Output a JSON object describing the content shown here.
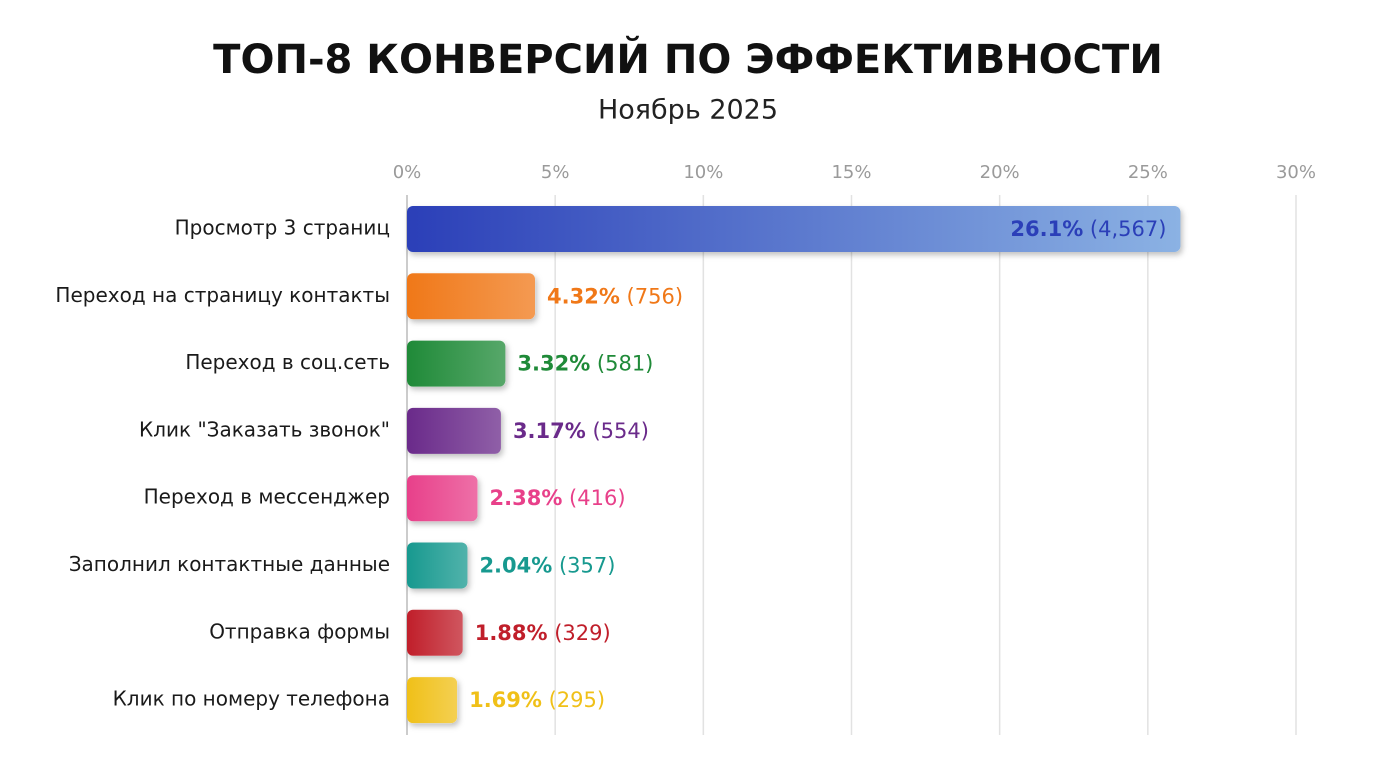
{
  "chart_data": {
    "type": "hbar",
    "title": "ТОП-8 КОНВЕРСИЙ ПО ЭФФЕКТИВНОСТИ",
    "subtitle": "Ноябрь 2025",
    "categories": [
      "Просмотр 3 страниц",
      "Переход на страницу контакты",
      "Переход в соц.сеть",
      "Клик \"Заказать звонок\"",
      "Переход в мессенджер",
      "Заполнил контактные данные",
      "Отправка формы",
      "Клик по номеру телефона"
    ],
    "values": [
      26.1,
      4.32,
      3.32,
      3.17,
      2.38,
      2.04,
      1.88,
      1.69
    ],
    "value_labels": [
      "26.1% (4,567)",
      "4.32% (756)",
      "3.32% (581)",
      "3.17% (554)",
      "2.38% (416)",
      "2.04% (357)",
      "1.88% (329)",
      "1.69% (295)"
    ],
    "colors": [
      "#2b3fb8",
      "#f07818",
      "#1f8a38",
      "#6a2a8a",
      "#e8408a",
      "#17998f",
      "#c01e2a",
      "#f0c018"
    ],
    "xlim": [
      0,
      30
    ],
    "xticks": [
      {
        "value": 0,
        "label": "0%"
      },
      {
        "value": 5,
        "label": "5%"
      },
      {
        "value": 10,
        "label": "10%"
      },
      {
        "value": 15,
        "label": "15%"
      },
      {
        "value": 20,
        "label": "20%"
      },
      {
        "value": 25,
        "label": "25%"
      },
      {
        "value": 30,
        "label": "30%"
      }
    ],
    "grid": true
  }
}
